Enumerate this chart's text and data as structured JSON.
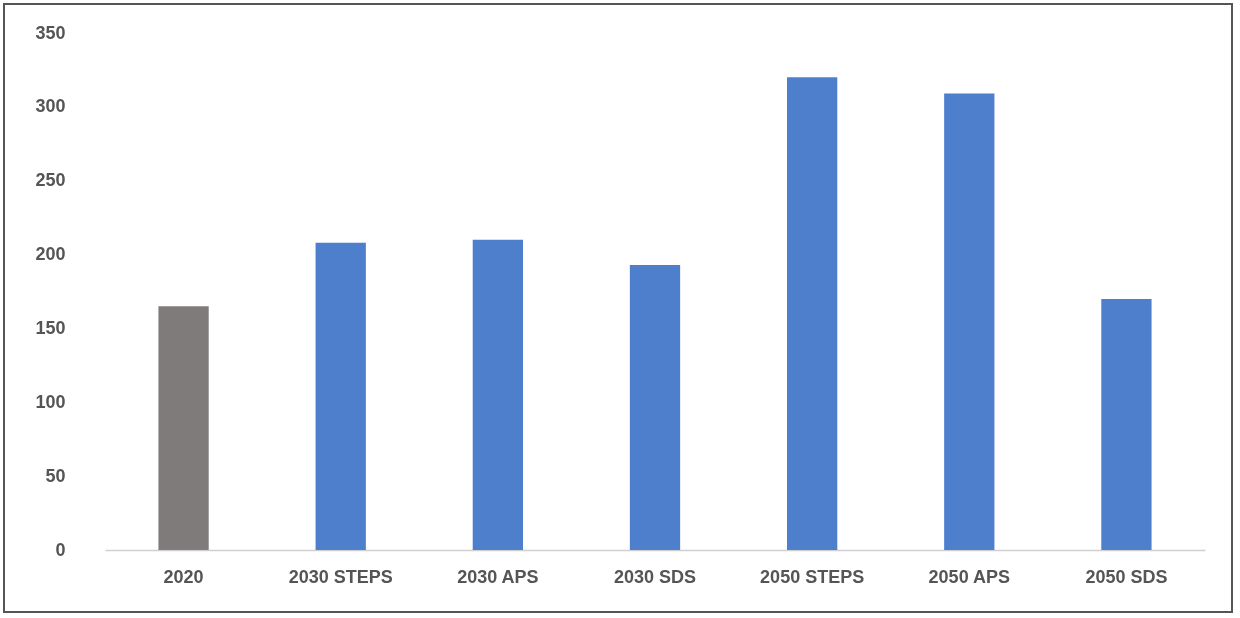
{
  "chart_data": {
    "type": "bar",
    "categories": [
      "2020",
      "2030 STEPS",
      "2030 APS",
      "2030 SDS",
      "2050 STEPS",
      "2050 APS",
      "2050 SDS"
    ],
    "values": [
      165,
      208,
      210,
      193,
      320,
      309,
      170
    ],
    "colors": [
      "#7f7b7a",
      "#4e7fcd",
      "#4e7fcd",
      "#4e7fcd",
      "#4e7fcd",
      "#4e7fcd",
      "#4e7fcd"
    ],
    "ylim": [
      0,
      350
    ],
    "yticks": [
      0,
      50,
      100,
      150,
      200,
      250,
      300,
      350
    ],
    "grid": false
  }
}
